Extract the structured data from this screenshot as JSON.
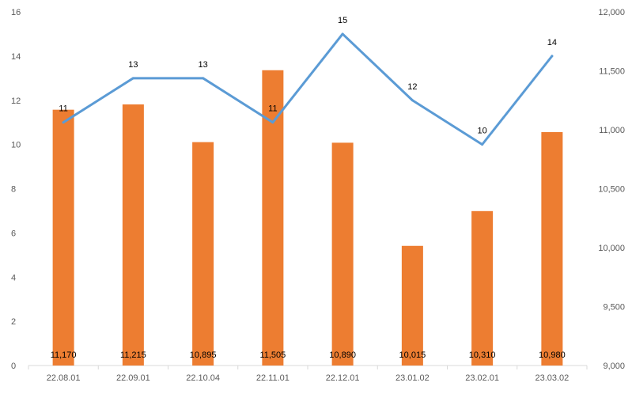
{
  "chart_data": {
    "type": "bar+line",
    "categories": [
      "22.08.01",
      "22.09.01",
      "22.10.04",
      "22.11.01",
      "22.12.01",
      "23.01.02",
      "23.02.01",
      "23.03.02"
    ],
    "series": [
      {
        "type": "bar",
        "axis": "right",
        "color": "#ED7D31",
        "values": [
          11170,
          11215,
          10895,
          11505,
          10890,
          10015,
          10310,
          10980
        ],
        "labels": [
          "11,170",
          "11,215",
          "10,895",
          "11,505",
          "10,890",
          "10,015",
          "10,310",
          "10,980"
        ]
      },
      {
        "type": "line",
        "axis": "left",
        "color": "#5B9BD5",
        "values": [
          11,
          13,
          13,
          11,
          15,
          12,
          10,
          14
        ],
        "labels": [
          "11",
          "13",
          "13",
          "11",
          "15",
          "12",
          "10",
          "14"
        ]
      }
    ],
    "left_axis": {
      "min": 0,
      "max": 16,
      "ticks": [
        0,
        2,
        4,
        6,
        8,
        10,
        12,
        14,
        16
      ],
      "tick_labels": [
        "0",
        "2",
        "4",
        "6",
        "8",
        "10",
        "12",
        "14",
        "16"
      ]
    },
    "right_axis": {
      "min": 9000,
      "max": 12000,
      "ticks": [
        9000,
        9500,
        10000,
        10500,
        11000,
        11500,
        12000
      ],
      "tick_labels": [
        "9,000",
        "9,500",
        "10,000",
        "10,500",
        "11,000",
        "11,500",
        "12,000"
      ]
    },
    "title": "",
    "xlabel": "",
    "ylabel": "",
    "grid": false,
    "legend": "none"
  }
}
